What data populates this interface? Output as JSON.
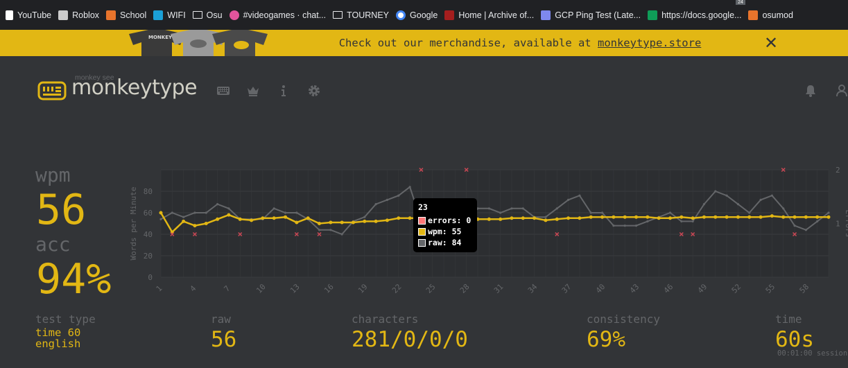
{
  "bookmarks": [
    {
      "label": "YouTube",
      "icon": "page-icon",
      "color": "#ffffff"
    },
    {
      "label": "Roblox",
      "icon": "roblox-icon",
      "color": "#cccccc"
    },
    {
      "label": "School",
      "icon": "school-icon",
      "color": "#e8742c"
    },
    {
      "label": "WIFI",
      "icon": "wifi-icon",
      "color": "#1ba0d8"
    },
    {
      "label": "Osu",
      "icon": "folder-icon",
      "color": "#e8eaed"
    },
    {
      "label": "#videogames · chat...",
      "icon": "osu-icon",
      "color": "#e2549c"
    },
    {
      "label": "TOURNEY",
      "icon": "folder-icon",
      "color": "#e8eaed"
    },
    {
      "label": "Google",
      "icon": "google-icon",
      "color": "#4285f4"
    },
    {
      "label": "Home | Archive of...",
      "icon": "ao3-icon",
      "color": "#a51e1e"
    },
    {
      "label": "GCP Ping Test (Late...",
      "icon": "gcp-icon",
      "color": "#7e88ef"
    },
    {
      "label": "https://docs.google...",
      "icon": "sheets-icon",
      "color": "#0f9d58"
    },
    {
      "label": "osumod",
      "icon": "osumod-icon",
      "color": "#e8742c"
    }
  ],
  "tab_count": "24",
  "banner": {
    "text": "Check out our merchandise, available at ",
    "link": "monkeytype.store",
    "close": "✕"
  },
  "header": {
    "tagline": "monkey see",
    "title": "monkeytype"
  },
  "stats": {
    "wpm_label": "wpm",
    "wpm": "56",
    "acc_label": "acc",
    "acc": "94%",
    "test_type_label": "test type",
    "test_type_line1": "time 60",
    "test_type_line2": "english",
    "raw_label": "raw",
    "raw": "56",
    "characters_label": "characters",
    "characters": "281/0/0/0",
    "consistency_label": "consistency",
    "consistency": "69%",
    "time_label": "time",
    "time": "60s",
    "session": "00:01:00 session"
  },
  "tooltip": {
    "title": "23",
    "rows": [
      {
        "label": "errors: 0",
        "color": "#ff7777"
      },
      {
        "label": "wpm: 55",
        "color": "#e2b714"
      },
      {
        "label": "raw: 84",
        "color": "#646669"
      }
    ]
  },
  "chart_data": {
    "type": "line",
    "ylabel": "Words per Minute",
    "y2label": "Errors",
    "ylim": [
      0,
      100
    ],
    "y2lim": [
      0,
      2
    ],
    "yticks": [
      "0",
      "20",
      "40",
      "60",
      "80"
    ],
    "y2ticks": [
      "1",
      "2"
    ],
    "xticks": [
      "1",
      "4",
      "7",
      "10",
      "13",
      "16",
      "19",
      "22",
      "25",
      "28",
      "31",
      "34",
      "37",
      "40",
      "43",
      "46",
      "49",
      "52",
      "55",
      "58"
    ],
    "x": [
      1,
      2,
      3,
      4,
      5,
      6,
      7,
      8,
      9,
      10,
      11,
      12,
      13,
      14,
      15,
      16,
      17,
      18,
      19,
      20,
      21,
      22,
      23,
      24,
      25,
      26,
      27,
      28,
      29,
      30,
      31,
      32,
      33,
      34,
      35,
      36,
      37,
      38,
      39,
      40,
      41,
      42,
      43,
      44,
      45,
      46,
      47,
      48,
      49,
      50,
      51,
      52,
      53,
      54,
      55,
      56,
      57,
      58,
      59,
      60
    ],
    "series": [
      {
        "name": "raw",
        "color": "#646669",
        "values": [
          54,
          60,
          56,
          60,
          60,
          68,
          64,
          54,
          54,
          54,
          64,
          60,
          60,
          54,
          44,
          44,
          40,
          52,
          56,
          68,
          72,
          76,
          84,
          52,
          52,
          56,
          52,
          52,
          64,
          64,
          60,
          64,
          64,
          56,
          56,
          64,
          72,
          76,
          60,
          60,
          48,
          48,
          48,
          52,
          56,
          60,
          52,
          52,
          68,
          80,
          76,
          68,
          60,
          72,
          76,
          64,
          48,
          44,
          52,
          60
        ]
      },
      {
        "name": "wpm",
        "color": "#e2b714",
        "values": [
          60,
          42,
          52,
          48,
          50,
          54,
          58,
          54,
          53,
          55,
          55,
          56,
          51,
          55,
          50,
          51,
          51,
          51,
          52,
          52,
          53,
          55,
          55,
          55,
          55,
          54,
          54,
          54,
          54,
          54,
          54,
          55,
          55,
          55,
          53,
          54,
          55,
          55,
          56,
          56,
          56,
          56,
          56,
          56,
          55,
          55,
          56,
          55,
          56,
          56,
          56,
          56,
          56,
          56,
          57,
          56,
          56,
          56,
          56,
          56
        ]
      },
      {
        "name": "errors",
        "color": "#ca4754",
        "points": [
          [
            2,
            0.8
          ],
          [
            4,
            0.8
          ],
          [
            8,
            0.8
          ],
          [
            13,
            0.8
          ],
          [
            15,
            0.8
          ],
          [
            24,
            2
          ],
          [
            28,
            2
          ],
          [
            36,
            0.8
          ],
          [
            47,
            0.8
          ],
          [
            48,
            0.8
          ],
          [
            56,
            2
          ],
          [
            57,
            0.8
          ]
        ]
      }
    ],
    "grid": true
  }
}
